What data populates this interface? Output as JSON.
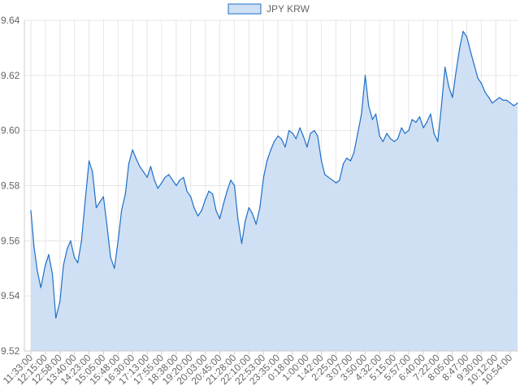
{
  "chart_data": {
    "type": "area",
    "title": "",
    "xlabel": "",
    "ylabel": "",
    "legend": {
      "position": "top",
      "entries": [
        "JPY KRW"
      ]
    },
    "grid": true,
    "ylim": [
      9.52,
      9.64
    ],
    "y_ticks": [
      "9.52",
      "9.54",
      "9.56",
      "9.58",
      "9.60",
      "9.62",
      "9.64"
    ],
    "x_ticks": [
      "11:33:00",
      "12:15:00",
      "12:58:00",
      "13:40:00",
      "14:23:00",
      "15:05:00",
      "15:48:00",
      "16:30:00",
      "17:13:00",
      "17:55:00",
      "18:38:00",
      "19:20:00",
      "20:03:00",
      "20:45:00",
      "21:28:00",
      "22:10:00",
      "22:53:00",
      "23:35:00",
      "0:18:00",
      "1:00:00",
      "1:42:00",
      "2:25:00",
      "3:07:00",
      "3:50:00",
      "4:32:00",
      "5:15:00",
      "5:57:00",
      "6:40:00",
      "7:22:00",
      "8:05:00",
      "8:47:00",
      "9:30:00",
      "10:12:00",
      "10:54:00"
    ],
    "colors": {
      "line": "#1f6fc9",
      "fill": "#cfe0f4",
      "grid": "#e6e6e6"
    },
    "series": [
      {
        "name": "JPY KRW",
        "x": [
          "11:33:00",
          "11:42:00",
          "11:52:00",
          "12:02:00",
          "12:15:00",
          "12:25:00",
          "12:36:00",
          "12:46:00",
          "12:58:00",
          "13:08:00",
          "13:19:00",
          "13:29:00",
          "13:40:00",
          "13:50:00",
          "14:01:00",
          "14:12:00",
          "14:23:00",
          "14:33:00",
          "14:44:00",
          "14:54:00",
          "15:05:00",
          "15:15:00",
          "15:26:00",
          "15:37:00",
          "15:48:00",
          "15:58:00",
          "16:09:00",
          "16:19:00",
          "16:30:00",
          "16:40:00",
          "16:51:00",
          "17:02:00",
          "17:13:00",
          "17:23:00",
          "17:34:00",
          "17:44:00",
          "17:55:00",
          "18:05:00",
          "18:16:00",
          "18:27:00",
          "18:38:00",
          "18:48:00",
          "18:59:00",
          "19:09:00",
          "19:20:00",
          "19:30:00",
          "19:41:00",
          "19:52:00",
          "20:03:00",
          "20:13:00",
          "20:24:00",
          "20:34:00",
          "20:45:00",
          "20:55:00",
          "21:06:00",
          "21:17:00",
          "21:28:00",
          "21:38:00",
          "21:49:00",
          "21:59:00",
          "22:10:00",
          "22:20:00",
          "22:31:00",
          "22:42:00",
          "22:53:00",
          "23:03:00",
          "23:14:00",
          "23:24:00",
          "23:35:00",
          "23:45:00",
          "23:56:00",
          "0:07:00",
          "0:18:00",
          "0:28:00",
          "0:39:00",
          "0:49:00",
          "1:00:00",
          "1:10:00",
          "1:21:00",
          "1:31:00",
          "1:42:00",
          "1:52:00",
          "2:03:00",
          "2:14:00",
          "2:25:00",
          "2:35:00",
          "2:46:00",
          "2:56:00",
          "3:07:00",
          "3:17:00",
          "3:28:00",
          "3:39:00",
          "3:50:00",
          "4:00:00",
          "4:11:00",
          "4:21:00",
          "4:32:00",
          "4:42:00",
          "4:53:00",
          "5:04:00",
          "5:15:00",
          "5:25:00",
          "5:36:00",
          "5:46:00",
          "5:57:00",
          "6:07:00",
          "6:18:00",
          "6:29:00",
          "6:40:00",
          "6:50:00",
          "7:01:00",
          "7:11:00",
          "7:22:00",
          "7:32:00",
          "7:43:00",
          "7:54:00",
          "8:05:00",
          "8:15:00",
          "8:26:00",
          "8:36:00",
          "8:47:00",
          "8:57:00",
          "9:08:00",
          "9:19:00",
          "9:30:00",
          "9:40:00",
          "9:51:00",
          "10:01:00",
          "10:12:00",
          "10:22:00",
          "10:33:00",
          "10:43:00",
          "10:54:00",
          "11:04:00",
          "11:15:00"
        ],
        "values": [
          9.571,
          9.558,
          9.549,
          9.543,
          9.551,
          9.555,
          9.548,
          9.532,
          9.538,
          9.551,
          9.557,
          9.56,
          9.554,
          9.552,
          9.56,
          9.575,
          9.589,
          9.585,
          9.572,
          9.574,
          9.576,
          9.566,
          9.554,
          9.55,
          9.56,
          9.571,
          9.577,
          9.588,
          9.593,
          9.59,
          9.587,
          9.585,
          9.583,
          9.587,
          9.582,
          9.579,
          9.581,
          9.583,
          9.584,
          9.582,
          9.58,
          9.582,
          9.583,
          9.578,
          9.576,
          9.572,
          9.569,
          9.571,
          9.575,
          9.578,
          9.577,
          9.571,
          9.568,
          9.573,
          9.578,
          9.582,
          9.58,
          9.568,
          9.559,
          9.567,
          9.572,
          9.57,
          9.566,
          9.572,
          9.583,
          9.589,
          9.593,
          9.596,
          9.598,
          9.597,
          9.594,
          9.6,
          9.599,
          9.597,
          9.601,
          9.598,
          9.594,
          9.599,
          9.6,
          9.598,
          9.589,
          9.584,
          9.583,
          9.582,
          9.581,
          9.582,
          9.588,
          9.59,
          9.589,
          9.592,
          9.599,
          9.606,
          9.62,
          9.609,
          9.604,
          9.606,
          9.598,
          9.596,
          9.599,
          9.597,
          9.596,
          9.597,
          9.601,
          9.599,
          9.6,
          9.604,
          9.603,
          9.605,
          9.601,
          9.603,
          9.606,
          9.599,
          9.596,
          9.608,
          9.623,
          9.616,
          9.612,
          9.621,
          9.63,
          9.636,
          9.634,
          9.629,
          9.624,
          9.619,
          9.617,
          9.614,
          9.612,
          9.61,
          9.611,
          9.612,
          9.611,
          9.611,
          9.61,
          9.609,
          9.61
        ]
      }
    ]
  }
}
